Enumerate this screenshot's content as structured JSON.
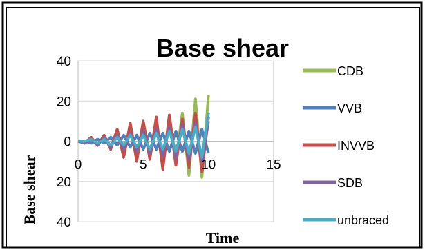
{
  "chart_data": {
    "type": "line",
    "title": "Base shear",
    "xlabel": "Time",
    "ylabel": "Base shear",
    "xlim": [
      0,
      15
    ],
    "ylim": [
      -40,
      40
    ],
    "xticks": [
      "0",
      "5",
      "10",
      "15"
    ],
    "yticks": [
      "40",
      "20",
      "0",
      "20",
      "40"
    ],
    "grid": "horizontal",
    "legend": "right",
    "series": [
      {
        "name": "CDB",
        "color": "#9BBB59",
        "x": [
          0,
          0.5,
          1,
          1.5,
          2,
          2.5,
          3,
          3.5,
          4,
          4.5,
          5,
          5.5,
          6,
          6.5,
          7,
          7.5,
          8,
          8.5,
          9,
          9.5,
          10
        ],
        "y": [
          0,
          -1,
          1,
          -2,
          2,
          -3,
          5,
          -6,
          7,
          -9,
          10,
          -8,
          7,
          -12,
          13,
          -10,
          14,
          -17,
          21,
          -18,
          23
        ]
      },
      {
        "name": "VVB",
        "color": "#4F81BD",
        "x": [
          0,
          0.5,
          1,
          1.5,
          2,
          2.5,
          3,
          3.5,
          4,
          4.5,
          5,
          5.5,
          6,
          6.5,
          7,
          7.5,
          8,
          8.5,
          9,
          9.5,
          10
        ],
        "y": [
          0,
          0,
          -1,
          1,
          -1,
          2,
          -2,
          3,
          -3,
          3,
          -4,
          4,
          -4,
          4,
          -5,
          5,
          -5,
          5,
          -6,
          6,
          -6
        ]
      },
      {
        "name": "INVVB",
        "color": "#C0504D",
        "x": [
          0,
          0.5,
          1,
          1.5,
          2,
          2.5,
          3,
          3.5,
          4,
          4.5,
          5,
          5.5,
          6,
          6.5,
          7,
          7.5,
          8,
          8.5,
          9,
          9.5,
          10
        ],
        "y": [
          0,
          -1,
          2,
          -2,
          3,
          -4,
          6,
          -8,
          9,
          -10,
          10,
          -9,
          12,
          -14,
          13,
          -12,
          11,
          -13,
          14,
          -15,
          12
        ]
      },
      {
        "name": "SDB",
        "color": "#8064A2",
        "x": [
          0,
          0.5,
          1,
          1.5,
          2,
          2.5,
          3,
          3.5,
          4,
          4.5,
          5,
          5.5,
          6,
          6.5,
          7,
          7.5,
          8,
          8.5,
          9,
          9.5,
          10
        ],
        "y": [
          0,
          -1,
          1,
          -2,
          2,
          -3,
          3,
          -4,
          4,
          -5,
          5,
          -6,
          6,
          -7,
          7,
          -8,
          8,
          -9,
          9,
          -10,
          10
        ]
      },
      {
        "name": "unbraced",
        "color": "#4BACC6",
        "x": [
          0,
          0.5,
          1,
          1.5,
          2,
          2.5,
          3,
          3.5,
          4,
          4.5,
          5,
          5.5,
          6,
          6.5,
          7,
          7.5,
          8,
          8.5,
          9,
          9.5,
          10
        ],
        "y": [
          0,
          0,
          1,
          -1,
          1,
          -2,
          2,
          -2,
          3,
          -3,
          3,
          -4,
          4,
          -4,
          5,
          -5,
          6,
          -6,
          7,
          -8,
          14
        ]
      }
    ]
  }
}
